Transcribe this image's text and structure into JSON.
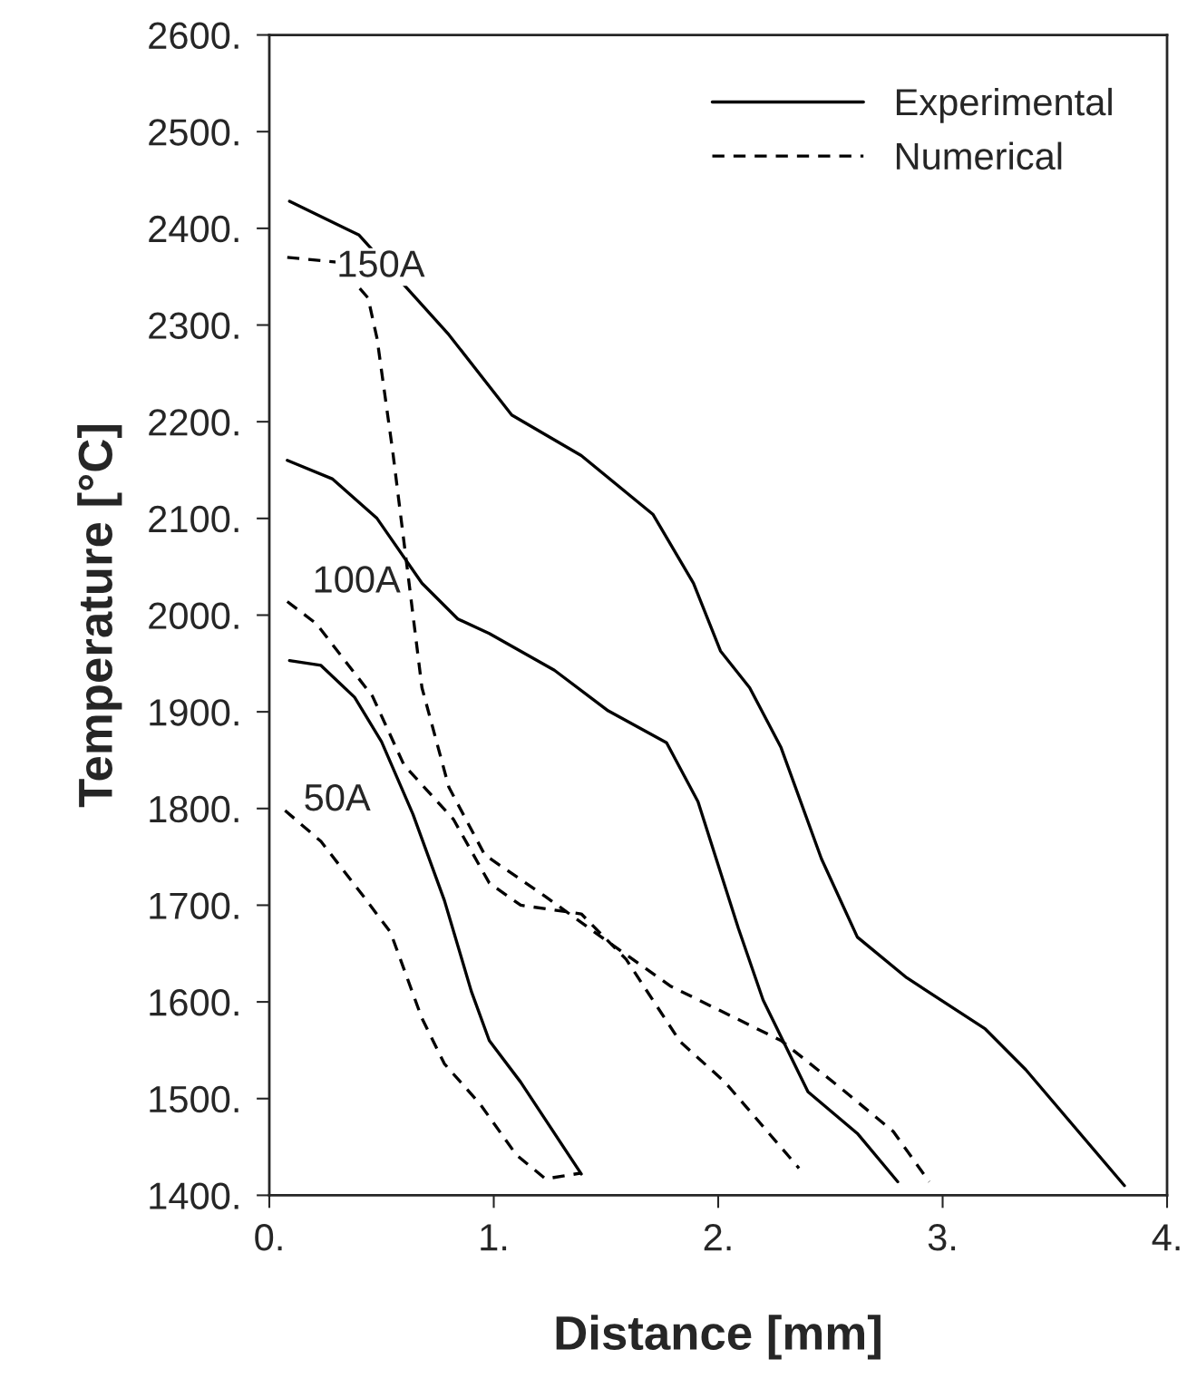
{
  "chart_data": {
    "type": "line",
    "xlabel": "Distance [mm]",
    "ylabel": "Temperature [°C]",
    "xlim": [
      0,
      4
    ],
    "ylim": [
      1400,
      2600
    ],
    "xticks": [
      {
        "value": 0,
        "label": "0."
      },
      {
        "value": 1,
        "label": "1."
      },
      {
        "value": 2,
        "label": "2."
      },
      {
        "value": 3,
        "label": "3."
      },
      {
        "value": 4,
        "label": "4."
      }
    ],
    "yticks": [
      {
        "value": 1400,
        "label": "1400."
      },
      {
        "value": 1500,
        "label": "1500."
      },
      {
        "value": 1600,
        "label": "1600."
      },
      {
        "value": 1700,
        "label": "1700."
      },
      {
        "value": 1800,
        "label": "1800."
      },
      {
        "value": 1900,
        "label": "1900."
      },
      {
        "value": 2000,
        "label": "2000."
      },
      {
        "value": 2100,
        "label": "2100."
      },
      {
        "value": 2200,
        "label": "2200."
      },
      {
        "value": 2300,
        "label": "2300."
      },
      {
        "value": 2400,
        "label": "2400."
      },
      {
        "value": 2500,
        "label": "2500."
      },
      {
        "value": 2600,
        "label": "2600."
      }
    ],
    "grid": false,
    "legend": "top right",
    "marker": "none",
    "series": [
      {
        "name": "Experimental",
        "color": "#000000",
        "line_style": "solid",
        "x": [
          0.09,
          0.4,
          0.8,
          1.08,
          1.39,
          1.71,
          1.89,
          2.01,
          2.14,
          2.28,
          2.46,
          2.62,
          2.84,
          3.19,
          3.37,
          3.81
        ],
        "values": [
          2428,
          2393,
          2290,
          2207,
          2165,
          2104,
          2033,
          1963,
          1925,
          1863,
          1748,
          1667,
          1625,
          1572,
          1530,
          1410
        ]
      },
      {
        "name": "Numerical",
        "color": "#000000",
        "line_style": "dashed",
        "x": [
          0.08,
          0.3,
          0.44,
          0.48,
          0.55,
          0.62,
          0.68,
          0.8,
          0.96,
          1.23,
          1.51,
          1.79,
          2.28,
          2.54,
          2.78,
          2.94
        ],
        "values": [
          2370,
          2365,
          2328,
          2286,
          2169,
          2038,
          1925,
          1822,
          1752,
          1709,
          1662,
          1616,
          1560,
          1512,
          1466,
          1414
        ]
      },
      {
        "color": "#000000",
        "line_style": "solid",
        "x": [
          0.08,
          0.28,
          0.48,
          0.68,
          0.84,
          0.98,
          1.27,
          1.51,
          1.77,
          1.91,
          2.09,
          2.2,
          2.4,
          2.62,
          2.8
        ],
        "values": [
          2160,
          2141,
          2100,
          2033,
          1996,
          1981,
          1943,
          1901,
          1868,
          1807,
          1676,
          1602,
          1507,
          1464,
          1414
        ]
      },
      {
        "color": "#000000",
        "line_style": "dashed",
        "x": [
          0.08,
          0.21,
          0.46,
          0.6,
          0.82,
          0.98,
          1.12,
          1.39,
          1.59,
          1.83,
          2.03,
          2.36
        ],
        "values": [
          2014,
          1991,
          1916,
          1845,
          1789,
          1723,
          1700,
          1691,
          1644,
          1559,
          1517,
          1428
        ]
      },
      {
        "color": "#000000",
        "line_style": "solid",
        "x": [
          0.09,
          0.23,
          0.38,
          0.5,
          0.64,
          0.78,
          0.9,
          0.98,
          1.12,
          1.39
        ],
        "values": [
          1953,
          1948,
          1915,
          1869,
          1794,
          1705,
          1611,
          1560,
          1517,
          1422
        ]
      },
      {
        "color": "#000000",
        "line_style": "dashed",
        "x": [
          0.07,
          0.23,
          0.42,
          0.54,
          0.68,
          0.78,
          0.94,
          1.1,
          1.23,
          1.39
        ],
        "values": [
          1798,
          1766,
          1709,
          1672,
          1583,
          1536,
          1494,
          1442,
          1417,
          1423
        ]
      }
    ],
    "annotations": [
      "150A",
      "100A",
      "50A"
    ]
  }
}
